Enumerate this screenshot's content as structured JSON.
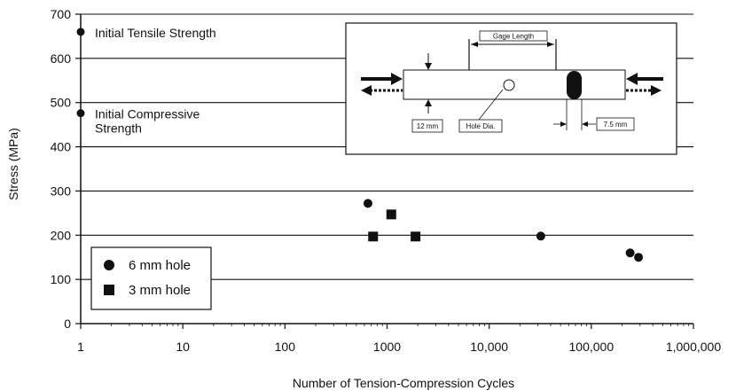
{
  "chart_data": {
    "type": "scatter",
    "xscale": "log",
    "xlim": [
      1,
      1000000
    ],
    "ylim": [
      0,
      700
    ],
    "xticks": [
      1,
      10,
      100,
      1000,
      10000,
      100000,
      1000000
    ],
    "xtick_labels": [
      "1",
      "10",
      "100",
      "1000",
      "10,000",
      "100,000",
      "1,000,000"
    ],
    "yticks": [
      0,
      100,
      200,
      300,
      400,
      500,
      600,
      700
    ],
    "ytick_labels": [
      "0",
      "100",
      "200",
      "300",
      "400",
      "500",
      "600",
      "700"
    ],
    "xlabel": "Number of Tension-Compression Cycles",
    "ylabel": "Stress (MPa)",
    "grid": "horizontal",
    "legend_position": "bottom-left",
    "series": [
      {
        "name": "6 mm hole",
        "marker": "circle",
        "color": "#111111",
        "points": [
          {
            "x": 650,
            "y": 272
          },
          {
            "x": 32000,
            "y": 198
          },
          {
            "x": 240000,
            "y": 160
          },
          {
            "x": 290000,
            "y": 150
          }
        ]
      },
      {
        "name": "3 mm hole",
        "marker": "square",
        "color": "#111111",
        "points": [
          {
            "x": 730,
            "y": 197
          },
          {
            "x": 1100,
            "y": 247
          },
          {
            "x": 1900,
            "y": 197
          }
        ]
      }
    ],
    "reference_points": [
      {
        "x": 1,
        "y": 660,
        "label_lines": [
          "Initial Tensile Strength"
        ]
      },
      {
        "x": 1,
        "y": 476,
        "label_lines": [
          "Initial Compressive",
          "Strength"
        ]
      }
    ],
    "inset": {
      "gage_length_label": "Gage Length",
      "hole_dia_label": "Hole Dia.",
      "width_label": "12 mm",
      "slot_label": "7.5 mm"
    }
  }
}
